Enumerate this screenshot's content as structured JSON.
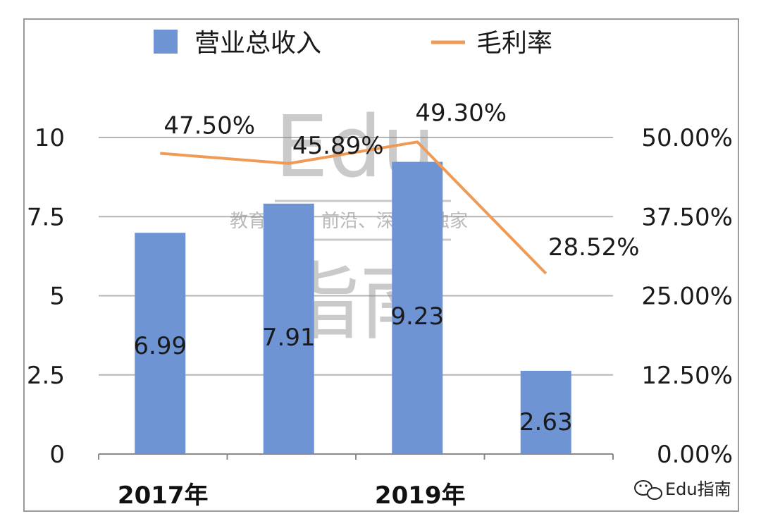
{
  "chart_data": {
    "type": "bar",
    "categories": [
      "2017年",
      "",
      "2019年",
      ""
    ],
    "series": [
      {
        "name": "营业总收入",
        "type": "bar",
        "axis": "left",
        "values": [
          6.99,
          7.91,
          9.23,
          2.63
        ],
        "labels": [
          "6.99",
          "7.91",
          "9.23",
          "2.63"
        ],
        "color": "#6f94d4"
      },
      {
        "name": "毛利率",
        "type": "line",
        "axis": "right",
        "values": [
          47.5,
          45.89,
          49.3,
          28.52
        ],
        "labels": [
          "47.50%",
          "45.89%",
          "49.30%",
          "28.52%"
        ],
        "color": "#ef9a55"
      }
    ],
    "y_left": {
      "range": [
        0,
        10
      ],
      "ticks": [
        "0",
        "2.5",
        "5",
        "7.5",
        "10"
      ]
    },
    "y_right": {
      "range": [
        0,
        50
      ],
      "ticks": [
        "0.00%",
        "12.50%",
        "25.00%",
        "37.50%",
        "50.00%"
      ]
    },
    "grid": true,
    "legend": "top"
  },
  "watermark": {
    "latin": "Edu",
    "tagline": "教育行业，前沿、深度、独家",
    "cjk": "指南"
  },
  "brand": {
    "text": "Edu指南",
    "icon": "wechat-icon"
  }
}
